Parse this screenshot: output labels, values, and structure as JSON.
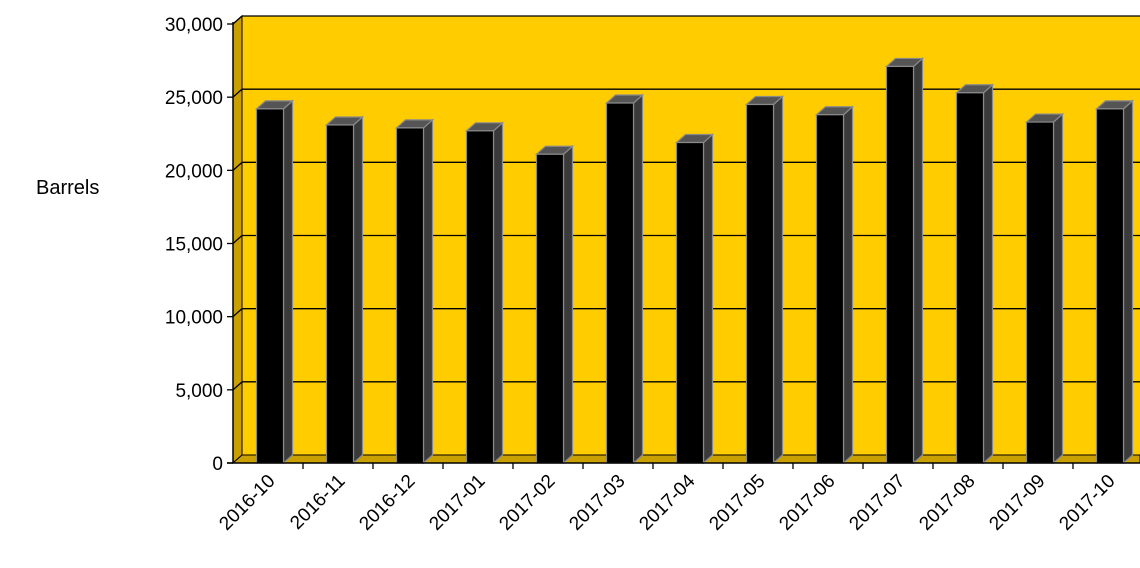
{
  "chart_data": {
    "type": "bar",
    "title": "",
    "xlabel": "",
    "ylabel": "Barrels",
    "categories": [
      "2016-10",
      "2016-11",
      "2016-12",
      "2017-01",
      "2017-02",
      "2017-03",
      "2017-04",
      "2017-05",
      "2017-06",
      "2017-07",
      "2017-08",
      "2017-09",
      "2017-10"
    ],
    "values": [
      24200,
      23100,
      22900,
      22700,
      21100,
      24600,
      21900,
      24500,
      23800,
      27100,
      25300,
      23300,
      24200
    ],
    "ylim": [
      0,
      30000
    ],
    "yticks": [
      "0",
      "5,000",
      "10,000",
      "15,000",
      "20,000",
      "25,000",
      "30,000"
    ],
    "ytick_values": [
      0,
      5000,
      10000,
      15000,
      20000,
      25000,
      30000
    ],
    "grid": true,
    "legend": "none",
    "style": "3d",
    "colors": {
      "plot_background": "#FFCC00",
      "plot_wall_side": "#C9A000",
      "bar_front": "#000000",
      "bar_side": "#3a3a3a",
      "bar_top": "#555555",
      "bar_edge": "#8a8a8a",
      "gridline": "#000000"
    }
  }
}
